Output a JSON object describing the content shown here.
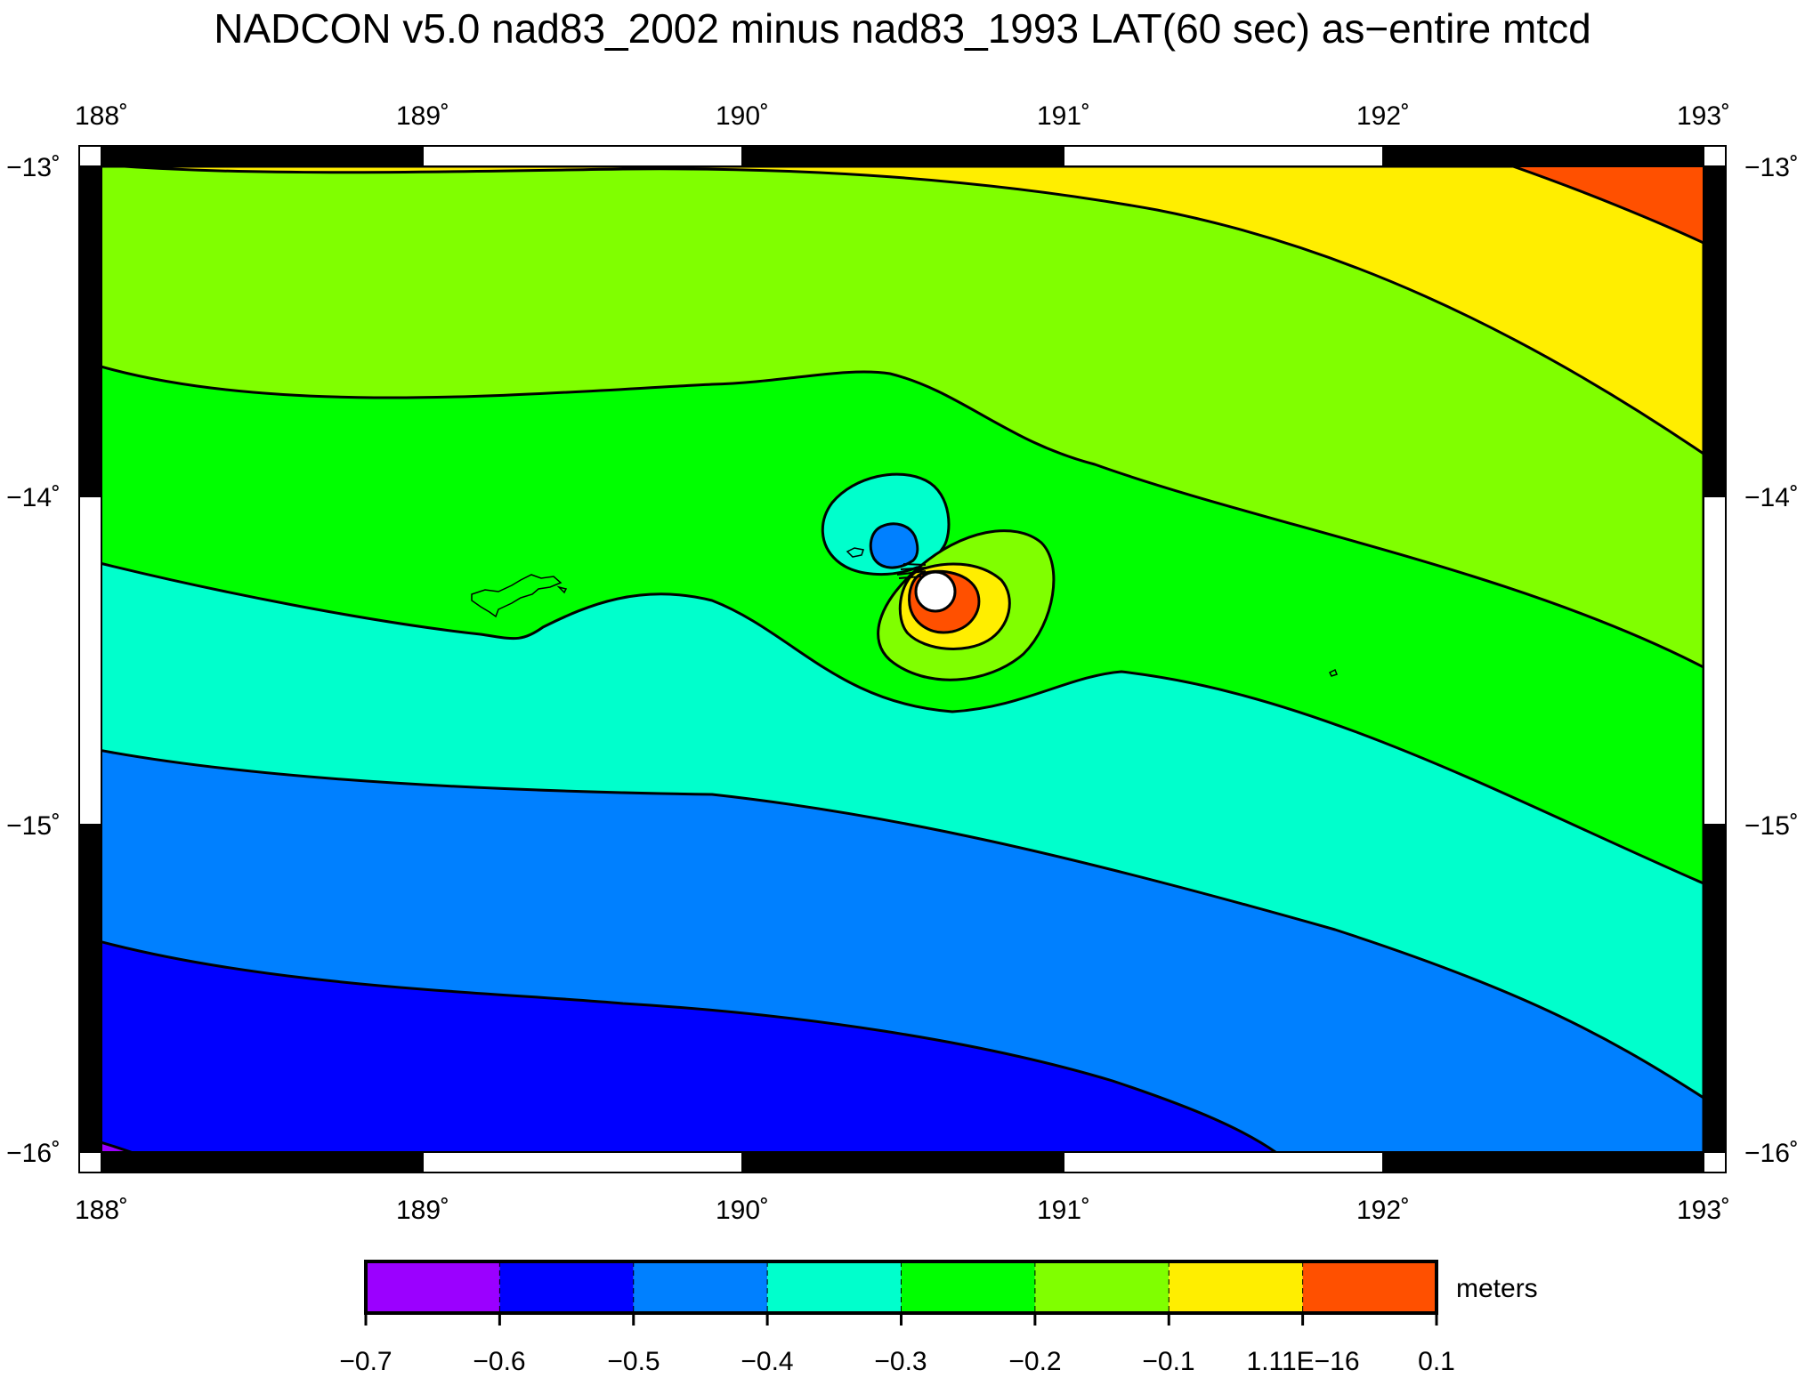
{
  "title": "NADCON v5.0 nad83_2002 minus nad83_1993 LAT(60 sec) as−entire mtcd",
  "map": {
    "lon_ticks": [
      "188˚",
      "189˚",
      "190˚",
      "191˚",
      "192˚",
      "193˚"
    ],
    "lat_ticks": [
      "−13˚",
      "−14˚",
      "−15˚",
      "−16˚"
    ],
    "lon_range": [
      188,
      193
    ],
    "lat_range": [
      -16,
      -13
    ],
    "projection": "mercator"
  },
  "contours": {
    "fills": [
      {
        "interval": "-0.7 to -0.6",
        "color": "#9b00ff"
      },
      {
        "interval": "-0.6 to -0.5",
        "color": "#0000ff"
      },
      {
        "interval": "-0.5 to -0.4",
        "color": "#0080ff"
      },
      {
        "interval": "-0.4 to -0.3",
        "color": "#00ffcc"
      },
      {
        "interval": "-0.3 to -0.2",
        "color": "#00ff00"
      },
      {
        "interval": "-0.2 to -0.1",
        "color": "#80ff00"
      },
      {
        "interval": "-0.1 to 1.11E-16",
        "color": "#ffee00"
      },
      {
        "interval": "1.11E-16 to 0.1",
        "color": "#ff5000"
      }
    ],
    "anomaly_center": {
      "lon": 190.6,
      "lat": -14.3
    }
  },
  "colorbar": {
    "unit_label": "meters",
    "labels": [
      "−0.7",
      "−0.6",
      "−0.5",
      "−0.4",
      "−0.3",
      "−0.2",
      "−0.1",
      "1.11E−16",
      "0.1"
    ],
    "colors": [
      "#9b00ff",
      "#0000ff",
      "#0080ff",
      "#00ffcc",
      "#00ff00",
      "#80ff00",
      "#ffee00",
      "#ff5000"
    ]
  }
}
